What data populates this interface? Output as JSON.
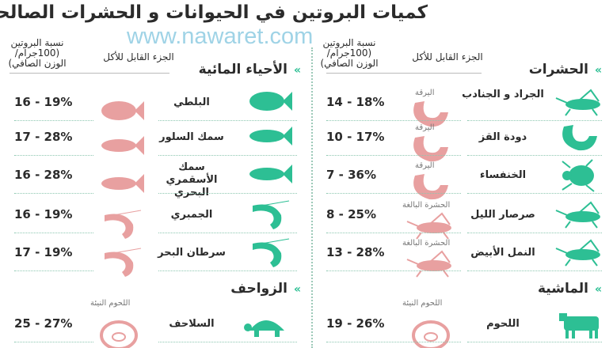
{
  "title": "كميات البروتين في الحيوانات و الحشرات الصالحة للأكل",
  "watermark": "www.nawaret.com",
  "colors": {
    "accent": "#2dbf94",
    "edible": "#e8a0a0",
    "text": "#2b2b2b"
  },
  "columns": [
    {
      "side": "right",
      "header_edible": "الجزء القابل للأكل",
      "header_protein": "نسبة البروتين",
      "header_protein_unit": "(100جرام/الوزن الصافي)",
      "sections": [
        {
          "title": "الحشرات",
          "rows": [
            {
              "name": "الجراد و الجنادب",
              "icon": "grasshopper-icon",
              "edible_icon": "larva-icon",
              "edible_label": "اليرقة",
              "protein": "14 - 18%"
            },
            {
              "name": "دودة القز",
              "icon": "silkworm-icon",
              "edible_icon": "caterpillar-icon",
              "edible_label": "اليرقة",
              "protein": "10 - 17%"
            },
            {
              "name": "الخنفساء",
              "icon": "beetle-icon",
              "edible_icon": "larva-icon",
              "edible_label": "اليرقة",
              "protein": "7 - 36%"
            },
            {
              "name": "صرصار الليل",
              "icon": "cricket-icon",
              "edible_icon": "cricket-icon",
              "edible_label": "الحشرة البالغة",
              "protein": "8 - 25%"
            },
            {
              "name": "النمل الأبيض",
              "icon": "termite-icon",
              "edible_icon": "termite-icon",
              "edible_label": "الحشرة البالغة",
              "protein": "13 - 28%"
            }
          ]
        },
        {
          "title": "الماشية",
          "rows": [
            {
              "name": "اللحوم",
              "icon": "cow-icon",
              "edible_icon": "meat-icon",
              "edible_label": "اللحوم النيئة",
              "protein": "19 - 26%"
            }
          ]
        }
      ]
    },
    {
      "side": "left",
      "header_edible": "الجزء القابل للأكل",
      "header_protein": "نسبة البروتين",
      "header_protein_unit": "(100جرام/الوزن الصافي)",
      "sections": [
        {
          "title": "الأحياء المائية",
          "rows": [
            {
              "name": "البلطي",
              "icon": "tilapia-icon",
              "edible_icon": "tilapia-icon",
              "edible_label": "",
              "protein": "16 - 19%"
            },
            {
              "name": "سمك السلور",
              "icon": "catfish-icon",
              "edible_icon": "catfish-icon",
              "edible_label": "",
              "protein": "17 - 28%"
            },
            {
              "name": "سمك الأسقمري البحري",
              "icon": "mackerel-icon",
              "edible_icon": "mackerel-icon",
              "edible_label": "",
              "protein": "16 - 28%"
            },
            {
              "name": "الجمبري",
              "icon": "shrimp-icon",
              "edible_icon": "shrimp-icon",
              "edible_label": "",
              "protein": "16 - 19%"
            },
            {
              "name": "سرطان البحر",
              "icon": "lobster-icon",
              "edible_icon": "lobster-icon",
              "edible_label": "",
              "protein": "17 - 19%"
            }
          ]
        },
        {
          "title": "الزواحف",
          "rows": [
            {
              "name": "السلاحف",
              "icon": "turtle-icon",
              "edible_icon": "meat-icon",
              "edible_label": "اللحوم النيئة",
              "protein": "25 - 27%"
            }
          ]
        }
      ]
    }
  ]
}
